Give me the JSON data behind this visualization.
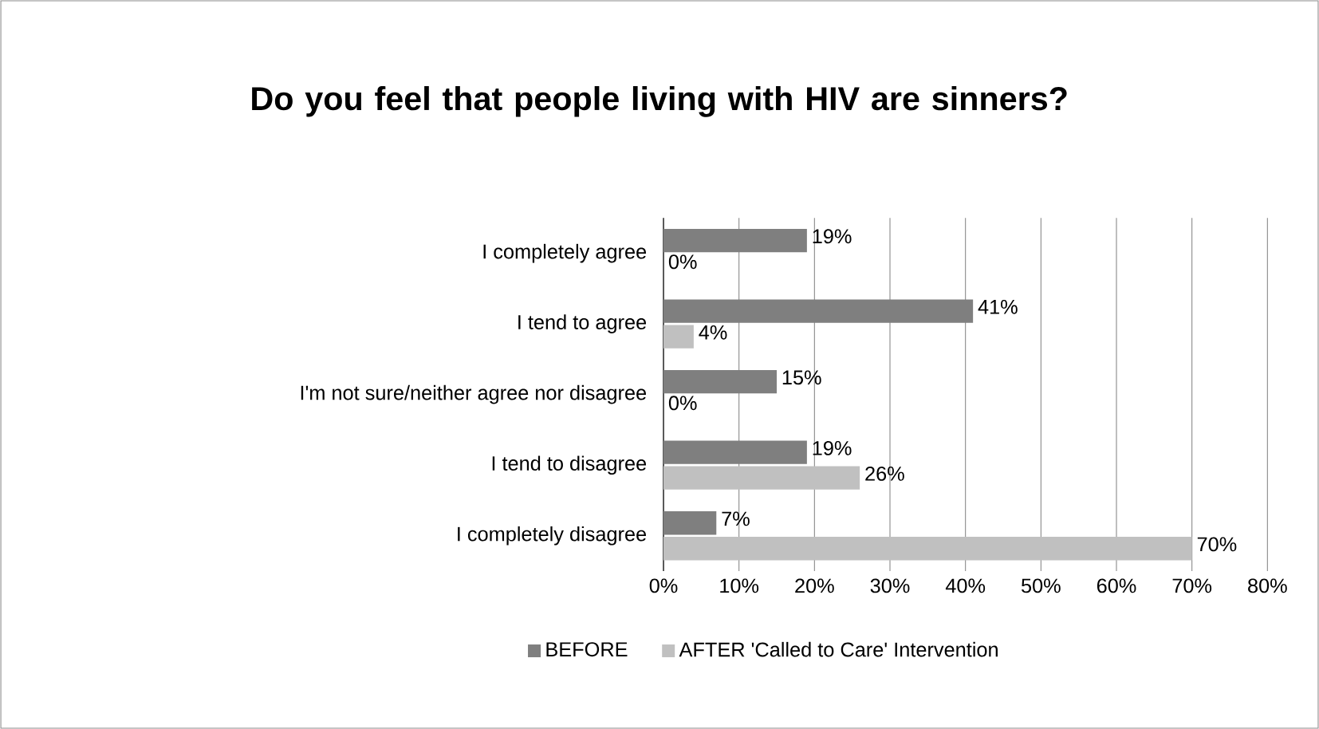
{
  "chart_data": {
    "type": "bar",
    "orientation": "horizontal",
    "title": "Do you feel that people living with HIV are sinners?",
    "categories": [
      "I completely agree",
      "I tend to agree",
      "I'm not sure/neither agree nor disagree",
      "I tend to disagree",
      "I completely disagree"
    ],
    "series": [
      {
        "name": "BEFORE",
        "color": "#7f7f7f",
        "values": [
          19,
          41,
          15,
          19,
          7
        ],
        "value_labels": [
          "19%",
          "41%",
          "15%",
          "19%",
          "7%"
        ]
      },
      {
        "name": "AFTER 'Called to Care' Intervention",
        "color": "#c0c0c0",
        "values": [
          0,
          4,
          0,
          26,
          70
        ],
        "value_labels": [
          "0%",
          "4%",
          "0%",
          "26%",
          "70%"
        ]
      }
    ],
    "xlim": [
      0,
      80
    ],
    "xticks": [
      {
        "value": 0,
        "label": "0%"
      },
      {
        "value": 10,
        "label": "10%"
      },
      {
        "value": 20,
        "label": "20%"
      },
      {
        "value": 30,
        "label": "30%"
      },
      {
        "value": 40,
        "label": "40%"
      },
      {
        "value": 50,
        "label": "50%"
      },
      {
        "value": 60,
        "label": "60%"
      },
      {
        "value": 70,
        "label": "70%"
      },
      {
        "value": 80,
        "label": "80%"
      }
    ],
    "grid": "x",
    "legend": "bottom"
  }
}
